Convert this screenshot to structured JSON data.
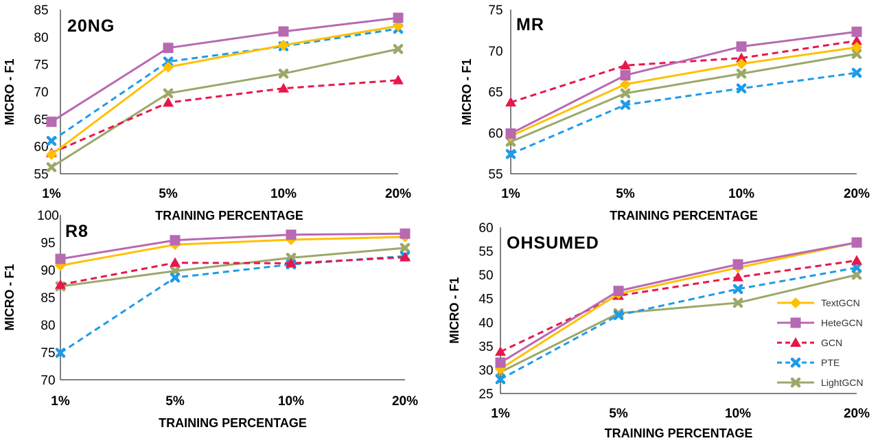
{
  "chart_data": [
    {
      "type": "line",
      "title": "20NG",
      "xlabel": "TRAINING PERCENTAGE",
      "ylabel": "MICRO - F1",
      "categories": [
        "1%",
        "5%",
        "10%",
        "20%"
      ],
      "ylim": [
        55,
        85
      ],
      "yticks": [
        55,
        60,
        65,
        70,
        75,
        80,
        85
      ],
      "grid": false,
      "series": [
        {
          "name": "TextGCN",
          "values": [
            58.5,
            74.5,
            78.5,
            82.0
          ]
        },
        {
          "name": "HeteGCN",
          "values": [
            64.5,
            78.0,
            81.0,
            83.5
          ]
        },
        {
          "name": "GCN",
          "values": [
            58.8,
            68.0,
            70.6,
            72.1
          ]
        },
        {
          "name": "PTE",
          "values": [
            61.0,
            75.5,
            78.3,
            81.5
          ]
        },
        {
          "name": "LightGCN",
          "values": [
            56.2,
            69.7,
            73.3,
            77.8
          ]
        }
      ]
    },
    {
      "type": "line",
      "title": "MR",
      "xlabel": "TRAINING PERCENTAGE",
      "ylabel": "MICRO - F1",
      "categories": [
        "1%",
        "5%",
        "10%",
        "20%"
      ],
      "ylim": [
        55,
        75
      ],
      "yticks": [
        55,
        60,
        65,
        70,
        75
      ],
      "grid": false,
      "series": [
        {
          "name": "TextGCN",
          "values": [
            59.6,
            65.9,
            68.4,
            70.4
          ]
        },
        {
          "name": "HeteGCN",
          "values": [
            59.9,
            67.0,
            70.5,
            72.3
          ]
        },
        {
          "name": "GCN",
          "values": [
            63.7,
            68.2,
            69.1,
            71.2
          ]
        },
        {
          "name": "PTE",
          "values": [
            57.4,
            63.4,
            65.4,
            67.3
          ]
        },
        {
          "name": "LightGCN",
          "values": [
            58.9,
            64.8,
            67.2,
            69.6
          ]
        }
      ]
    },
    {
      "type": "line",
      "title": "R8",
      "xlabel": "TRAINING PERCENTAGE",
      "ylabel": "MICRO - F1",
      "categories": [
        "1%",
        "5%",
        "10%",
        "20%"
      ],
      "ylim": [
        70,
        100
      ],
      "yticks": [
        70,
        75,
        80,
        85,
        90,
        95,
        100
      ],
      "grid": false,
      "series": [
        {
          "name": "TextGCN",
          "values": [
            90.8,
            94.6,
            95.5,
            96.0
          ]
        },
        {
          "name": "HeteGCN",
          "values": [
            92.0,
            95.4,
            96.4,
            96.6
          ]
        },
        {
          "name": "GCN",
          "values": [
            87.3,
            91.3,
            91.2,
            92.3
          ]
        },
        {
          "name": "PTE",
          "values": [
            74.9,
            88.6,
            91.0,
            92.5
          ]
        },
        {
          "name": "LightGCN",
          "values": [
            87.0,
            89.8,
            92.2,
            94.0
          ]
        }
      ]
    },
    {
      "type": "line",
      "title": "OHSUMED",
      "xlabel": "TRAINING PERCENTAGE",
      "ylabel": "MICRO - F1",
      "categories": [
        "1%",
        "5%",
        "10%",
        "20%"
      ],
      "ylim": [
        25,
        60
      ],
      "yticks": [
        25,
        30,
        35,
        40,
        45,
        50,
        55,
        60
      ],
      "grid": false,
      "legend": "right",
      "series": [
        {
          "name": "TextGCN",
          "values": [
            30.2,
            46.0,
            51.5,
            56.8
          ]
        },
        {
          "name": "HeteGCN",
          "values": [
            31.5,
            46.6,
            52.2,
            56.8
          ]
        },
        {
          "name": "GCN",
          "values": [
            33.8,
            45.6,
            49.5,
            53.0
          ]
        },
        {
          "name": "PTE",
          "values": [
            28.0,
            41.5,
            47.0,
            51.5
          ]
        },
        {
          "name": "LightGCN",
          "values": [
            29.5,
            41.9,
            44.1,
            50.0
          ]
        }
      ]
    }
  ],
  "series_styles": {
    "TextGCN": {
      "color": "#FFC000",
      "dash": "solid",
      "marker": "diamond"
    },
    "HeteGCN": {
      "color": "#B769B1",
      "dash": "solid",
      "marker": "square"
    },
    "GCN": {
      "color": "#E8174B",
      "dash": "dashed",
      "marker": "triangle"
    },
    "PTE": {
      "color": "#1E9BE9",
      "dash": "dashed",
      "marker": "x"
    },
    "LightGCN": {
      "color": "#9BA869",
      "dash": "solid",
      "marker": "x"
    }
  }
}
